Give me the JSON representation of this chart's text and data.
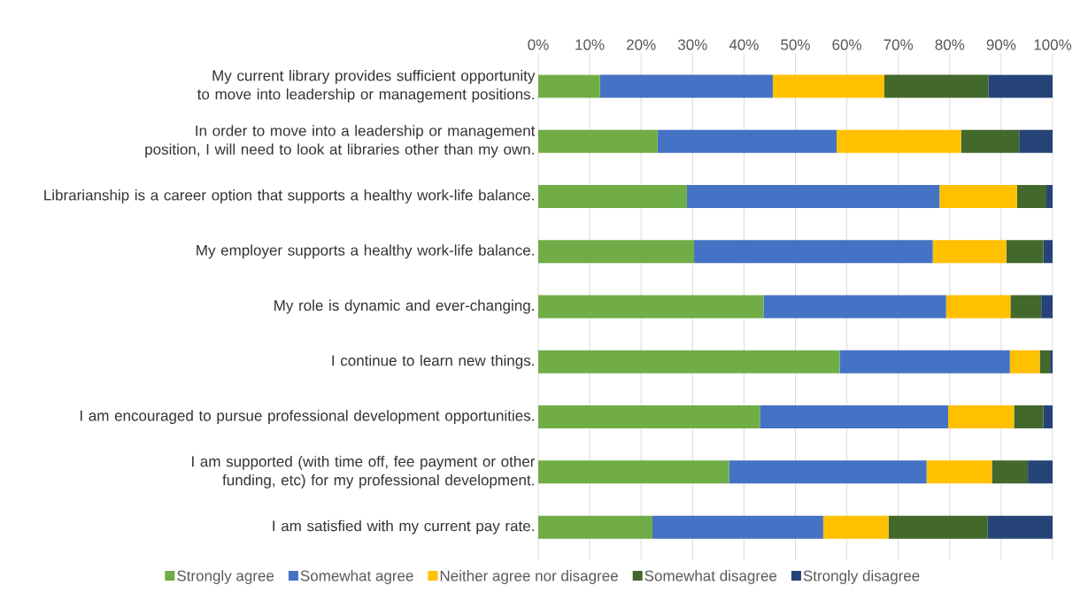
{
  "chart_data": {
    "type": "bar",
    "orientation": "horizontal",
    "stacked": true,
    "categories": [
      "My current library provides sufficient opportunity to move into leadership or management positions.",
      "In order to move into a leadership or management position, I will need to look at libraries other than my own.",
      "Librarianship is a career option that supports a healthy work-life balance.",
      "My employer supports a healthy work-life balance.",
      "My role is dynamic and ever-changing.",
      "I continue to learn new things.",
      "I am encouraged to pursue professional development opportunities.",
      "I am supported (with time off, fee payment or other funding, etc) for my professional development.",
      "I am satisfied with my current pay rate."
    ],
    "series": [
      {
        "name": "Strongly agree",
        "color": "#70ad47",
        "values": [
          12.0,
          23.2,
          28.9,
          30.3,
          43.8,
          58.6,
          43.1,
          37.1,
          22.2
        ]
      },
      {
        "name": "Somewhat agree",
        "color": "#4472c4",
        "values": [
          33.6,
          34.8,
          49.1,
          46.4,
          35.5,
          33.1,
          36.6,
          38.4,
          33.2
        ]
      },
      {
        "name": "Neither agree nor disagree",
        "color": "#ffc000",
        "values": [
          21.7,
          24.2,
          15.1,
          14.3,
          12.5,
          5.8,
          12.8,
          12.7,
          12.7
        ]
      },
      {
        "name": "Somewhat disagree",
        "color": "#43682b",
        "values": [
          20.2,
          11.3,
          5.7,
          7.2,
          6.0,
          2.0,
          5.7,
          7.0,
          19.3
        ]
      },
      {
        "name": "Strongly disagree",
        "color": "#264478",
        "values": [
          12.5,
          6.5,
          1.2,
          1.8,
          2.2,
          0.5,
          1.8,
          4.8,
          12.6
        ]
      }
    ],
    "xlim": [
      0,
      100
    ],
    "xticks": [
      {
        "value": 0,
        "label": "0%"
      },
      {
        "value": 10,
        "label": "10%"
      },
      {
        "value": 20,
        "label": "20%"
      },
      {
        "value": 30,
        "label": "30%"
      },
      {
        "value": 40,
        "label": "40%"
      },
      {
        "value": 50,
        "label": "50%"
      },
      {
        "value": 60,
        "label": "60%"
      },
      {
        "value": 70,
        "label": "70%"
      },
      {
        "value": 80,
        "label": "80%"
      },
      {
        "value": 90,
        "label": "90%"
      },
      {
        "value": 100,
        "label": "100%"
      }
    ],
    "grid": "x",
    "legend": "bottom"
  }
}
